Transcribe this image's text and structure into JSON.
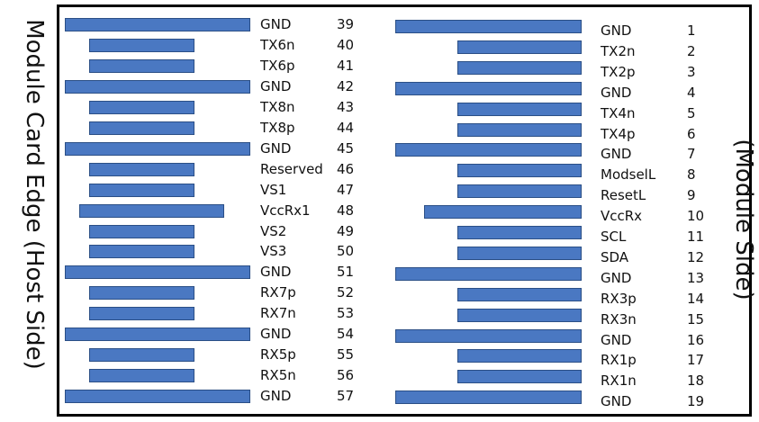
{
  "labels": {
    "host_side": "Module Card Edge (Host Side)",
    "module_side": "(Module Side)"
  },
  "colors": {
    "pad_fill": "#4a78c2",
    "pad_border": "#2b4f86"
  },
  "left_pins": [
    {
      "signal": "GND",
      "number": "39",
      "type": "ground"
    },
    {
      "signal": "TX6n",
      "number": "40",
      "type": "signal"
    },
    {
      "signal": "TX6p",
      "number": "41",
      "type": "signal"
    },
    {
      "signal": "GND",
      "number": "42",
      "type": "ground"
    },
    {
      "signal": "TX8n",
      "number": "43",
      "type": "signal"
    },
    {
      "signal": "TX8p",
      "number": "44",
      "type": "signal"
    },
    {
      "signal": "GND",
      "number": "45",
      "type": "ground"
    },
    {
      "signal": "Reserved",
      "number": "46",
      "type": "signal"
    },
    {
      "signal": "VS1",
      "number": "47",
      "type": "signal"
    },
    {
      "signal": "VccRx1",
      "number": "48",
      "type": "power"
    },
    {
      "signal": "VS2",
      "number": "49",
      "type": "signal"
    },
    {
      "signal": "VS3",
      "number": "50",
      "type": "signal"
    },
    {
      "signal": "GND",
      "number": "51",
      "type": "ground"
    },
    {
      "signal": "RX7p",
      "number": "52",
      "type": "signal"
    },
    {
      "signal": "RX7n",
      "number": "53",
      "type": "signal"
    },
    {
      "signal": "GND",
      "number": "54",
      "type": "ground"
    },
    {
      "signal": "RX5p",
      "number": "55",
      "type": "signal"
    },
    {
      "signal": "RX5n",
      "number": "56",
      "type": "signal"
    },
    {
      "signal": "GND",
      "number": "57",
      "type": "ground"
    }
  ],
  "right_pins": [
    {
      "signal": "GND",
      "number": "1",
      "type": "ground"
    },
    {
      "signal": "TX2n",
      "number": "2",
      "type": "signal"
    },
    {
      "signal": "TX2p",
      "number": "3",
      "type": "signal"
    },
    {
      "signal": "GND",
      "number": "4",
      "type": "ground"
    },
    {
      "signal": "TX4n",
      "number": "5",
      "type": "signal"
    },
    {
      "signal": "TX4p",
      "number": "6",
      "type": "signal"
    },
    {
      "signal": "GND",
      "number": "7",
      "type": "ground"
    },
    {
      "signal": "ModselL",
      "number": "8",
      "type": "signal"
    },
    {
      "signal": "ResetL",
      "number": "9",
      "type": "signal"
    },
    {
      "signal": "VccRx",
      "number": "10",
      "type": "power"
    },
    {
      "signal": "SCL",
      "number": "11",
      "type": "signal"
    },
    {
      "signal": "SDA",
      "number": "12",
      "type": "signal"
    },
    {
      "signal": "GND",
      "number": "13",
      "type": "ground"
    },
    {
      "signal": "RX3p",
      "number": "14",
      "type": "signal"
    },
    {
      "signal": "RX3n",
      "number": "15",
      "type": "signal"
    },
    {
      "signal": "GND",
      "number": "16",
      "type": "ground"
    },
    {
      "signal": "RX1p",
      "number": "17",
      "type": "signal"
    },
    {
      "signal": "RX1n",
      "number": "18",
      "type": "signal"
    },
    {
      "signal": "GND",
      "number": "19",
      "type": "ground"
    }
  ]
}
